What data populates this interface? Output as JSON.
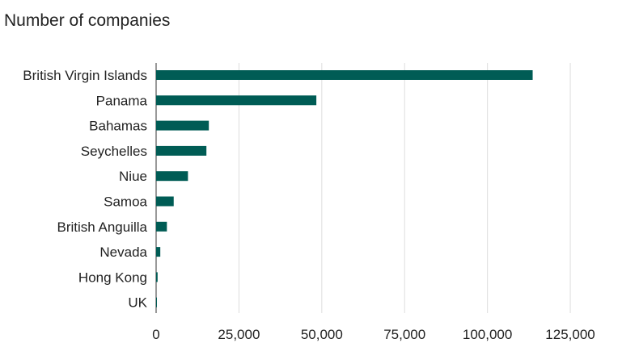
{
  "chart_data": {
    "type": "bar",
    "orientation": "horizontal",
    "title": "Number of companies",
    "categories": [
      "British Virgin Islands",
      "Panama",
      "Bahamas",
      "Seychelles",
      "Niue",
      "Samoa",
      "British Anguilla",
      "Nevada",
      "Hong Kong",
      "UK"
    ],
    "values": [
      113648,
      48360,
      15915,
      15182,
      9611,
      5307,
      3253,
      1260,
      450,
      15
    ],
    "xlim": [
      0,
      135000
    ],
    "x_ticks": [
      0,
      25000,
      50000,
      75000,
      100000,
      125000
    ],
    "x_tick_labels": [
      "0",
      "25,000",
      "50,000",
      "75,000",
      "100,000",
      "125,000"
    ],
    "grid": "vertical",
    "bar_color": "#005c55",
    "grid_color": "#dddddd",
    "axis_color": "#333333"
  }
}
